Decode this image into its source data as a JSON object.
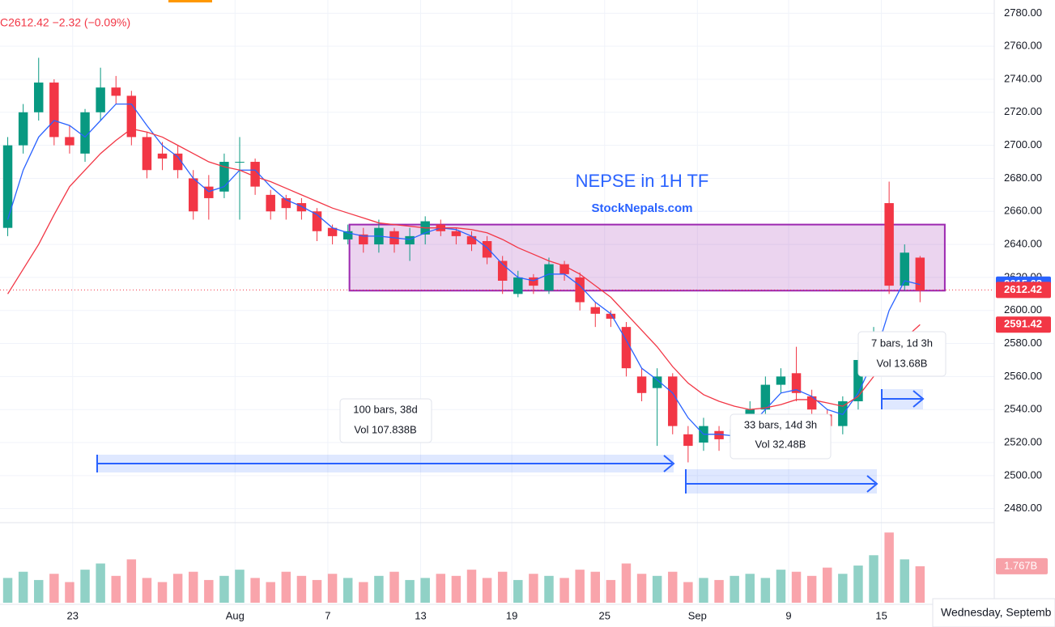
{
  "chart_data": {
    "type": "candlestick",
    "title": "NEPSE in 1H TF",
    "subtitle": "StockNepals.com",
    "legend_text": "C2612.42 −2.32 (−0.09%)",
    "up_color": "#089981",
    "down_color": "#f23645",
    "open": [
      2650,
      2700,
      2720,
      2738,
      2705,
      2695,
      2720,
      2735,
      2730,
      2705,
      2695,
      2695,
      2680,
      2675,
      2672,
      2690,
      2690,
      2670,
      2668,
      2665,
      2660,
      2650,
      2643,
      2646,
      2640,
      2648,
      2640,
      2646,
      2652,
      2648,
      2645,
      2642,
      2630,
      2610,
      2620,
      2612,
      2628,
      2620,
      2602,
      2598,
      2590,
      2560,
      2553,
      2560,
      2525,
      2520,
      2527,
      2520,
      2535,
      2540,
      2555,
      2562,
      2548,
      2537,
      2530,
      2545,
      2570,
      2665,
      2615,
      2632
    ],
    "high": [
      2705,
      2725,
      2753,
      2740,
      2712,
      2722,
      2747,
      2742,
      2733,
      2708,
      2702,
      2700,
      2685,
      2682,
      2695,
      2705,
      2692,
      2673,
      2670,
      2668,
      2662,
      2652,
      2652,
      2650,
      2655,
      2650,
      2650,
      2657,
      2655,
      2650,
      2648,
      2645,
      2633,
      2624,
      2622,
      2632,
      2630,
      2623,
      2605,
      2600,
      2593,
      2565,
      2565,
      2562,
      2530,
      2535,
      2530,
      2532,
      2545,
      2560,
      2565,
      2578,
      2552,
      2540,
      2548,
      2575,
      2590,
      2678,
      2640,
      2633
    ],
    "low": [
      2645,
      2695,
      2715,
      2700,
      2695,
      2690,
      2715,
      2725,
      2700,
      2680,
      2685,
      2680,
      2655,
      2655,
      2668,
      2655,
      2670,
      2655,
      2655,
      2655,
      2642,
      2640,
      2640,
      2635,
      2635,
      2635,
      2630,
      2640,
      2645,
      2640,
      2636,
      2628,
      2610,
      2608,
      2610,
      2610,
      2618,
      2600,
      2590,
      2590,
      2560,
      2545,
      2518,
      2525,
      2508,
      2515,
      2515,
      2515,
      2530,
      2535,
      2550,
      2545,
      2535,
      2525,
      2525,
      2540,
      2565,
      2610,
      2612,
      2605
    ],
    "close": [
      2700,
      2720,
      2738,
      2705,
      2700,
      2720,
      2735,
      2730,
      2705,
      2685,
      2692,
      2685,
      2660,
      2668,
      2690,
      2690,
      2675,
      2660,
      2662,
      2660,
      2648,
      2645,
      2648,
      2640,
      2650,
      2640,
      2645,
      2654,
      2648,
      2645,
      2640,
      2632,
      2618,
      2620,
      2615,
      2628,
      2622,
      2605,
      2598,
      2595,
      2565,
      2550,
      2560,
      2530,
      2518,
      2530,
      2522,
      2528,
      2540,
      2555,
      2560,
      2550,
      2540,
      2530,
      2545,
      2570,
      2585,
      2615,
      2635,
      2612
    ],
    "volume": [
      1.2,
      1.5,
      1.1,
      1.4,
      1.0,
      1.6,
      1.9,
      1.3,
      2.1,
      1.2,
      1.0,
      1.4,
      1.5,
      1.1,
      1.3,
      1.6,
      1.2,
      1.0,
      1.5,
      1.3,
      1.1,
      1.4,
      1.2,
      1.0,
      1.3,
      1.5,
      1.1,
      1.2,
      1.4,
      1.3,
      1.6,
      1.2,
      1.5,
      1.1,
      1.4,
      1.3,
      1.2,
      1.6,
      1.5,
      1.1,
      1.9,
      1.4,
      1.3,
      1.5,
      1.0,
      1.2,
      1.1,
      1.3,
      1.4,
      1.2,
      1.6,
      1.5,
      1.3,
      1.7,
      1.4,
      1.8,
      2.3,
      3.4,
      2.1,
      1.767
    ],
    "volume_label": "1.767B",
    "vlim": [
      0,
      3.8
    ],
    "series": [
      {
        "color": "#2962ff",
        "values": [
          2655,
          2685,
          2705,
          2715,
          2712,
          2705,
          2715,
          2725,
          2725,
          2712,
          2700,
          2693,
          2680,
          2672,
          2675,
          2685,
          2685,
          2675,
          2667,
          2663,
          2658,
          2650,
          2647,
          2645,
          2645,
          2644,
          2643,
          2647,
          2650,
          2649,
          2645,
          2638,
          2628,
          2620,
          2618,
          2622,
          2622,
          2615,
          2605,
          2598,
          2582,
          2565,
          2558,
          2550,
          2535,
          2525,
          2525,
          2524,
          2530,
          2540,
          2550,
          2552,
          2548,
          2540,
          2537,
          2550,
          2570,
          2600,
          2618,
          2615.68
        ]
      },
      {
        "color": "#f23645",
        "values": [
          2610,
          2625,
          2640,
          2658,
          2675,
          2685,
          2695,
          2703,
          2710,
          2708,
          2705,
          2700,
          2695,
          2690,
          2687,
          2685,
          2681,
          2678,
          2674,
          2670,
          2666,
          2662,
          2659,
          2656,
          2653,
          2652,
          2651,
          2650,
          2650,
          2650,
          2649,
          2647,
          2643,
          2638,
          2634,
          2630,
          2627,
          2622,
          2615,
          2608,
          2598,
          2588,
          2578,
          2566,
          2556,
          2549,
          2545,
          2542,
          2540,
          2541,
          2543,
          2546,
          2546,
          2544,
          2542,
          2548,
          2560,
          2572,
          2583,
          2591.42
        ]
      }
    ],
    "price_tags": [
      {
        "value": 2615.68,
        "color": "#2962ff"
      },
      {
        "value": 2612.42,
        "color": "#f23645"
      },
      {
        "value": 2591.42,
        "color": "#f23645"
      }
    ],
    "range_box": {
      "x": [
        22.1,
        60.6
      ],
      "y": [
        2612,
        2652
      ]
    },
    "xlim": [
      -0.5,
      63.8
    ],
    "ylim": [
      2472,
      2788
    ],
    "yticks": [
      {
        "value": 2480,
        "label": "2480.00"
      },
      {
        "value": 2500,
        "label": "2500.00"
      },
      {
        "value": 2520,
        "label": "2520.00"
      },
      {
        "value": 2540,
        "label": "2540.00"
      },
      {
        "value": 2560,
        "label": "2560.00"
      },
      {
        "value": 2580,
        "label": "2580.00"
      },
      {
        "value": 2600,
        "label": "2600.00"
      },
      {
        "value": 2620,
        "label": "2620.00"
      },
      {
        "value": 2640,
        "label": "2640.00"
      },
      {
        "value": 2660,
        "label": "2660.00"
      },
      {
        "value": 2680,
        "label": "2680.00"
      },
      {
        "value": 2700,
        "label": "2700.00"
      },
      {
        "value": 2720,
        "label": "2720.00"
      },
      {
        "value": 2740,
        "label": "2740.00"
      },
      {
        "value": 2760,
        "label": "2760.00"
      },
      {
        "value": 2780,
        "label": "2780.00"
      }
    ],
    "xticks": [
      {
        "value": 4.2,
        "label": "23"
      },
      {
        "value": 14.7,
        "label": "Aug"
      },
      {
        "value": 20.7,
        "label": "7"
      },
      {
        "value": 26.7,
        "label": "13"
      },
      {
        "value": 32.6,
        "label": "19"
      },
      {
        "value": 38.6,
        "label": "25"
      },
      {
        "value": 44.6,
        "label": "Sep"
      },
      {
        "value": 50.5,
        "label": "9"
      },
      {
        "value": 56.5,
        "label": "15"
      }
    ],
    "grid": true,
    "annotations": [
      "100 bars, 38d",
      "Vol 107.838B",
      "33 bars, 14d 3h",
      "Vol 32.48B",
      "7 bars, 1d 3h",
      "Vol 13.68B"
    ],
    "footer": "Wednesday, Septemb"
  }
}
